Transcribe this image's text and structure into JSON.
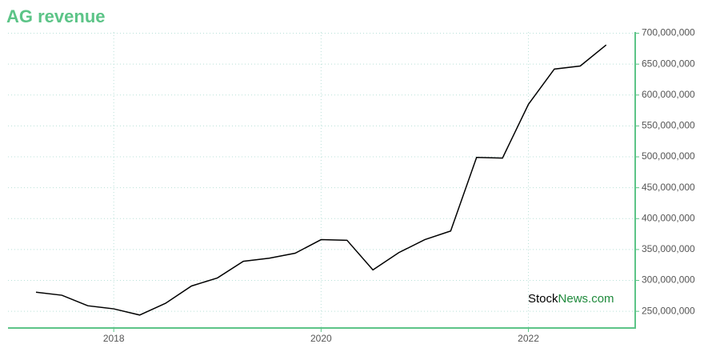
{
  "chart_data": {
    "type": "line",
    "title": "AG revenue",
    "x": [
      2017.25,
      2017.5,
      2017.75,
      2018,
      2018.25,
      2018.5,
      2018.75,
      2019,
      2019.25,
      2019.5,
      2019.75,
      2020,
      2020.25,
      2020.5,
      2020.75,
      2021,
      2021.25,
      2021.5,
      2021.75,
      2022,
      2022.25,
      2022.5,
      2022.75
    ],
    "series": [
      {
        "name": "AG revenue",
        "color": "#000000",
        "values": [
          281000000,
          276000000,
          259000000,
          254000000,
          244000000,
          263000000,
          291000000,
          304000000,
          331000000,
          336000000,
          344000000,
          366000000,
          365000000,
          317000000,
          345000000,
          366000000,
          380000000,
          499000000,
          498000000,
          585000000,
          642000000,
          647000000,
          681000000
        ]
      }
    ],
    "xlim": [
      2016.98,
      2023.03
    ],
    "xticks": [
      2018,
      2020,
      2022
    ],
    "ylim": [
      223000000,
      702000000
    ],
    "yticks": [
      {
        "value": 250000000,
        "label": "250,000,000"
      },
      {
        "value": 300000000,
        "label": "300,000,000"
      },
      {
        "value": 350000000,
        "label": "350,000,000"
      },
      {
        "value": 400000000,
        "label": "400,000,000"
      },
      {
        "value": 450000000,
        "label": "450,000,000"
      },
      {
        "value": 500000000,
        "label": "500,000,000"
      },
      {
        "value": 550000000,
        "label": "550,000,000"
      },
      {
        "value": 600000000,
        "label": "600,000,000"
      },
      {
        "value": 650000000,
        "label": "650,000,000"
      },
      {
        "value": 700000000,
        "label": "700,000,000"
      }
    ],
    "grid": true,
    "axis_color": "#5cc487",
    "watermark": [
      "Stock",
      "News.com"
    ]
  }
}
